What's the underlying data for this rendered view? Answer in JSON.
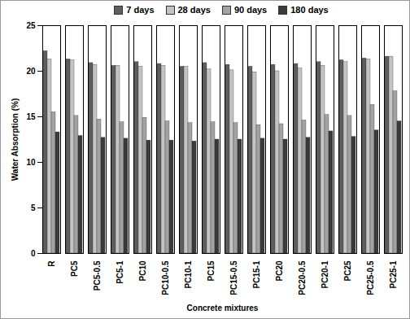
{
  "chart_data": {
    "type": "bar",
    "xlabel": "Concrete mixtures",
    "ylabel": "Water Absorption (%)",
    "categories": [
      "R",
      "PC5",
      "PC5-0.5",
      "PC5-1",
      "PC10",
      "PC10-0.5",
      "PC10-1",
      "PC15",
      "PC15-0.5",
      "PC15-1",
      "PC20",
      "PC20-0.5",
      "PC20-1",
      "PC25",
      "PC25-0.5",
      "PC25-1"
    ],
    "series": [
      {
        "name": "7 days",
        "color": "#5e5e5e",
        "values": [
          22.2,
          21.3,
          20.9,
          20.6,
          21.0,
          20.8,
          20.5,
          20.9,
          20.7,
          20.5,
          20.7,
          20.8,
          21.0,
          21.2,
          21.4,
          21.6
        ]
      },
      {
        "name": "28 days",
        "color": "#c4c4c4",
        "values": [
          21.3,
          21.2,
          20.7,
          20.6,
          20.5,
          20.6,
          20.5,
          20.2,
          20.1,
          19.9,
          20.0,
          20.3,
          20.6,
          21.0,
          21.3,
          21.6
        ]
      },
      {
        "name": "90 days",
        "color": "#a3a3a3",
        "values": [
          15.5,
          15.1,
          14.7,
          14.4,
          14.9,
          14.5,
          14.3,
          14.4,
          14.3,
          14.1,
          14.2,
          14.6,
          15.2,
          15.1,
          16.3,
          17.8
        ]
      },
      {
        "name": "180 days",
        "color": "#3a3a3a",
        "values": [
          13.3,
          12.9,
          12.7,
          12.6,
          12.4,
          12.4,
          12.3,
          12.5,
          12.5,
          12.6,
          12.5,
          12.7,
          13.4,
          12.8,
          13.5,
          14.5
        ]
      }
    ],
    "ylim": [
      0,
      25
    ],
    "yticks": [
      0,
      5,
      10,
      15,
      20,
      25
    ],
    "legend": "top",
    "grid": false
  }
}
